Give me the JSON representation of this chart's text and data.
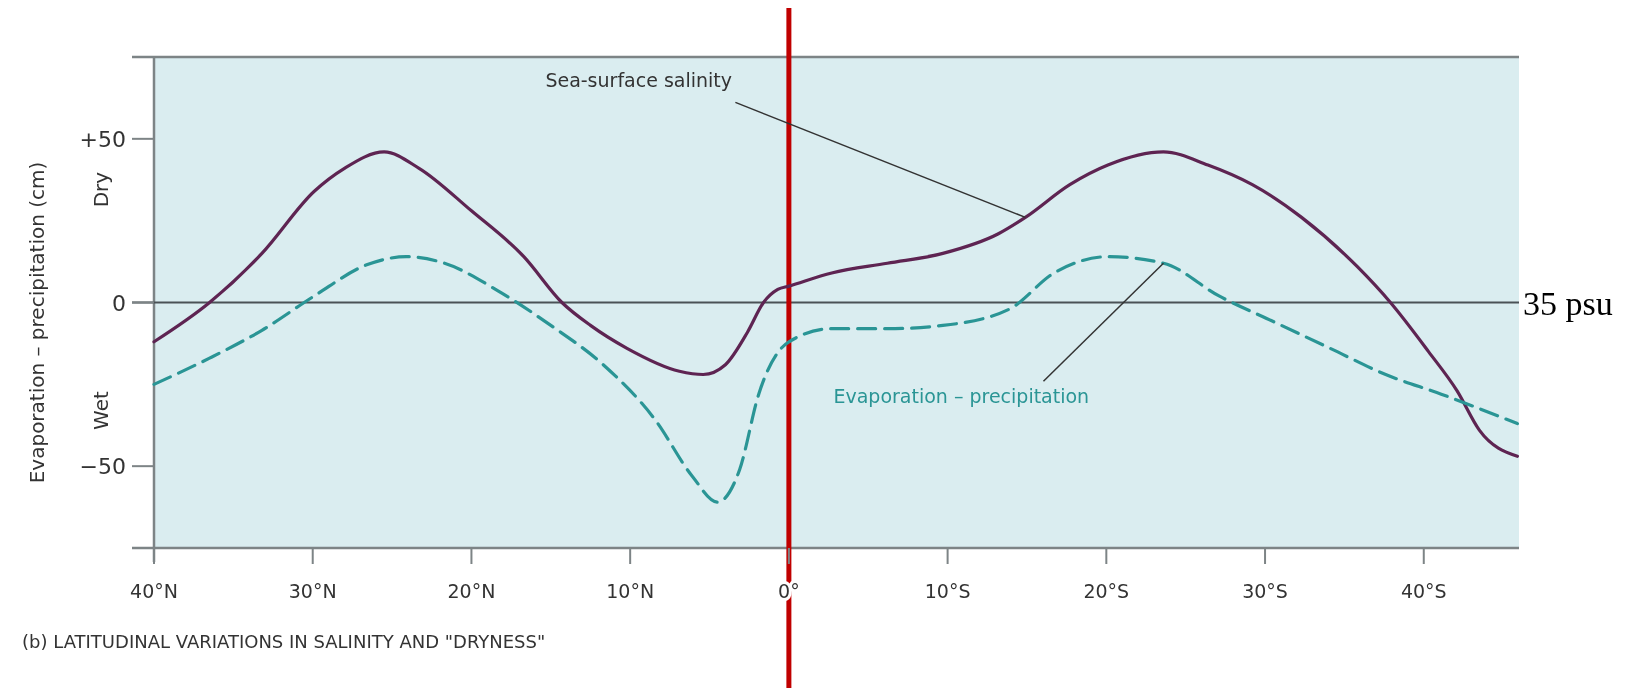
{
  "chart_data": {
    "type": "line",
    "title": "(b)   LATITUDINAL VARIATIONS IN SALINITY AND \"DRYNESS\"",
    "ylabel": "Evaporation – precipitation (cm)",
    "annotations": [
      "Dry",
      "Wet"
    ],
    "xlim": [
      40,
      -46
    ],
    "xticks": [
      {
        "value": 40,
        "label": "40°N"
      },
      {
        "value": 30,
        "label": "30°N"
      },
      {
        "value": 20,
        "label": "20°N"
      },
      {
        "value": 10,
        "label": "10°N"
      },
      {
        "value": 0,
        "label": "0°"
      },
      {
        "value": -10,
        "label": "10°S"
      },
      {
        "value": -20,
        "label": "20°S"
      },
      {
        "value": -30,
        "label": "30°S"
      },
      {
        "value": -40,
        "label": "40°S"
      }
    ],
    "ylim": [
      -75,
      75
    ],
    "yticks": [
      {
        "value": 50,
        "label": "+50"
      },
      0,
      {
        "value": -50,
        "label": "−50"
      }
    ],
    "grid": false,
    "ref_lines": [
      {
        "axis": "y",
        "value": 0,
        "label": "35 psu",
        "color": "#4a5256"
      },
      {
        "axis": "x",
        "value": 0,
        "color": "#c00000"
      }
    ],
    "series": [
      {
        "name": "Sea-surface salinity",
        "color": "#5e2452",
        "line_style": "solid",
        "x": [
          40,
          36.5,
          33.2,
          29.9,
          28,
          25.5,
          23.3,
          20,
          16.7,
          14.3,
          12.5,
          10.2,
          6.9,
          5.4,
          4,
          2.6,
          1.6,
          0.7,
          0,
          -2.7,
          -6.2,
          -9.7,
          -13.2,
          -14.9,
          -17.7,
          -20.1,
          -23.6,
          -26.4,
          -29.2,
          -32.3,
          -35.8,
          -37.9,
          -40.3,
          -42.1,
          -43.5,
          -45.9
        ],
        "values": [
          -12,
          0,
          15,
          34,
          41,
          46,
          41,
          28,
          14,
          0,
          -7,
          -14,
          -21,
          -22,
          -19,
          -9,
          0,
          4,
          5,
          9,
          12,
          15,
          21,
          26,
          36,
          42,
          46,
          42,
          36,
          26,
          11,
          0,
          -15,
          -27,
          -39,
          -47
        ]
      },
      {
        "name": "Evaporation – precipitation",
        "color": "#2a9595",
        "line_style": "dashed",
        "x": [
          40,
          36.5,
          33.2,
          29.9,
          26.6,
          24.1,
          21.7,
          18.3,
          15,
          11.7,
          8.4,
          6.1,
          4.5,
          3.1,
          1.9,
          0,
          -2.7,
          -6.2,
          -9.7,
          -13.9,
          -16.7,
          -20.1,
          -23.6,
          -27.1,
          -30.6,
          -34.1,
          -37.6,
          -41.1,
          -45.9
        ],
        "values": [
          -25,
          -17,
          -8.5,
          2,
          11.5,
          14,
          12,
          3.5,
          -7,
          -19,
          -36,
          -53,
          -61,
          -51,
          -28,
          -12,
          -8,
          -8,
          -7,
          -2,
          9,
          14,
          12,
          2,
          -6,
          -14,
          -22,
          -28,
          -37
        ]
      }
    ]
  }
}
